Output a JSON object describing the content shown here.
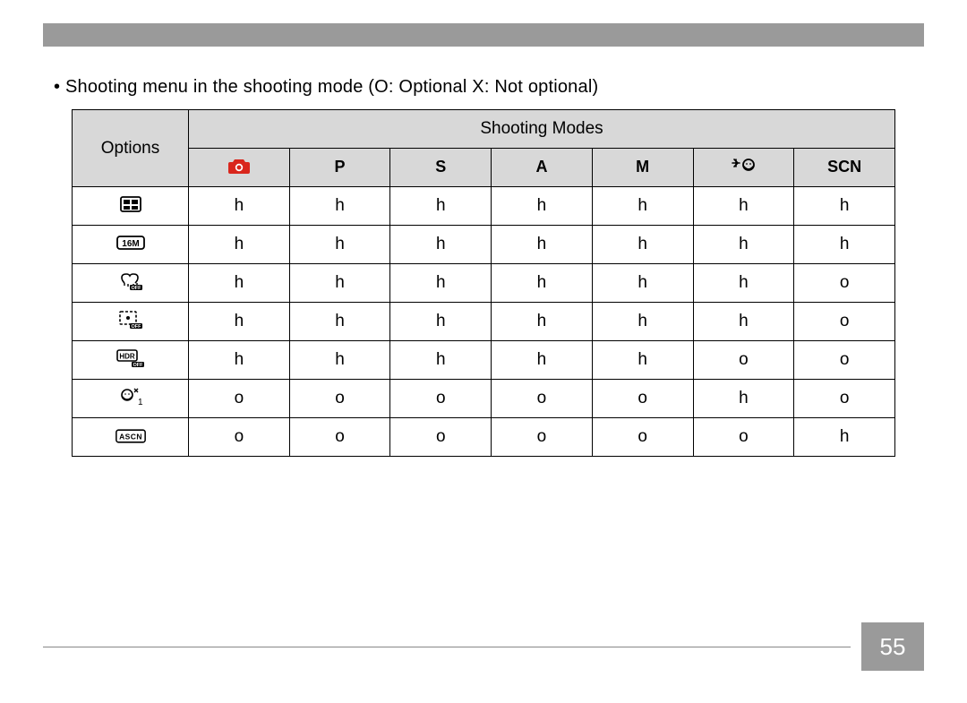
{
  "intro_bullet": "•",
  "intro_text": "Shooting menu in the shooting mode (O: Optional   X: Not optional)",
  "table": {
    "options_label": "Options",
    "shooting_modes_label": "Shooting Modes",
    "mode_headers": {
      "auto": "",
      "p": "P",
      "s": "S",
      "a": "A",
      "m": "M",
      "face": "",
      "scn": "SCN"
    },
    "rows": [
      {
        "opt": "aspect",
        "cells": [
          "h",
          "h",
          "h",
          "h",
          "h",
          "h",
          "h"
        ]
      },
      {
        "opt": "size16m",
        "cells": [
          "h",
          "h",
          "h",
          "h",
          "h",
          "h",
          "h"
        ]
      },
      {
        "opt": "ois_off",
        "cells": [
          "h",
          "h",
          "h",
          "h",
          "h",
          "h",
          "o"
        ]
      },
      {
        "opt": "caf_off",
        "cells": [
          "h",
          "h",
          "h",
          "h",
          "h",
          "h",
          "o"
        ]
      },
      {
        "opt": "hdr_off",
        "cells": [
          "h",
          "h",
          "h",
          "h",
          "h",
          "o",
          "o"
        ]
      },
      {
        "opt": "beauty",
        "cells": [
          "o",
          "o",
          "o",
          "o",
          "o",
          "h",
          "o"
        ]
      },
      {
        "opt": "ascn",
        "cells": [
          "o",
          "o",
          "o",
          "o",
          "o",
          "o",
          "h"
        ]
      }
    ]
  },
  "colors": {
    "top_bar": "#9a9a9a",
    "header_fill": "#d8d8d8",
    "camera_red": "#d9261c",
    "text": "#000000",
    "page_box_bg": "#9a9a9a",
    "page_box_text": "#ffffff",
    "border": "#000000"
  },
  "page_number": "55"
}
